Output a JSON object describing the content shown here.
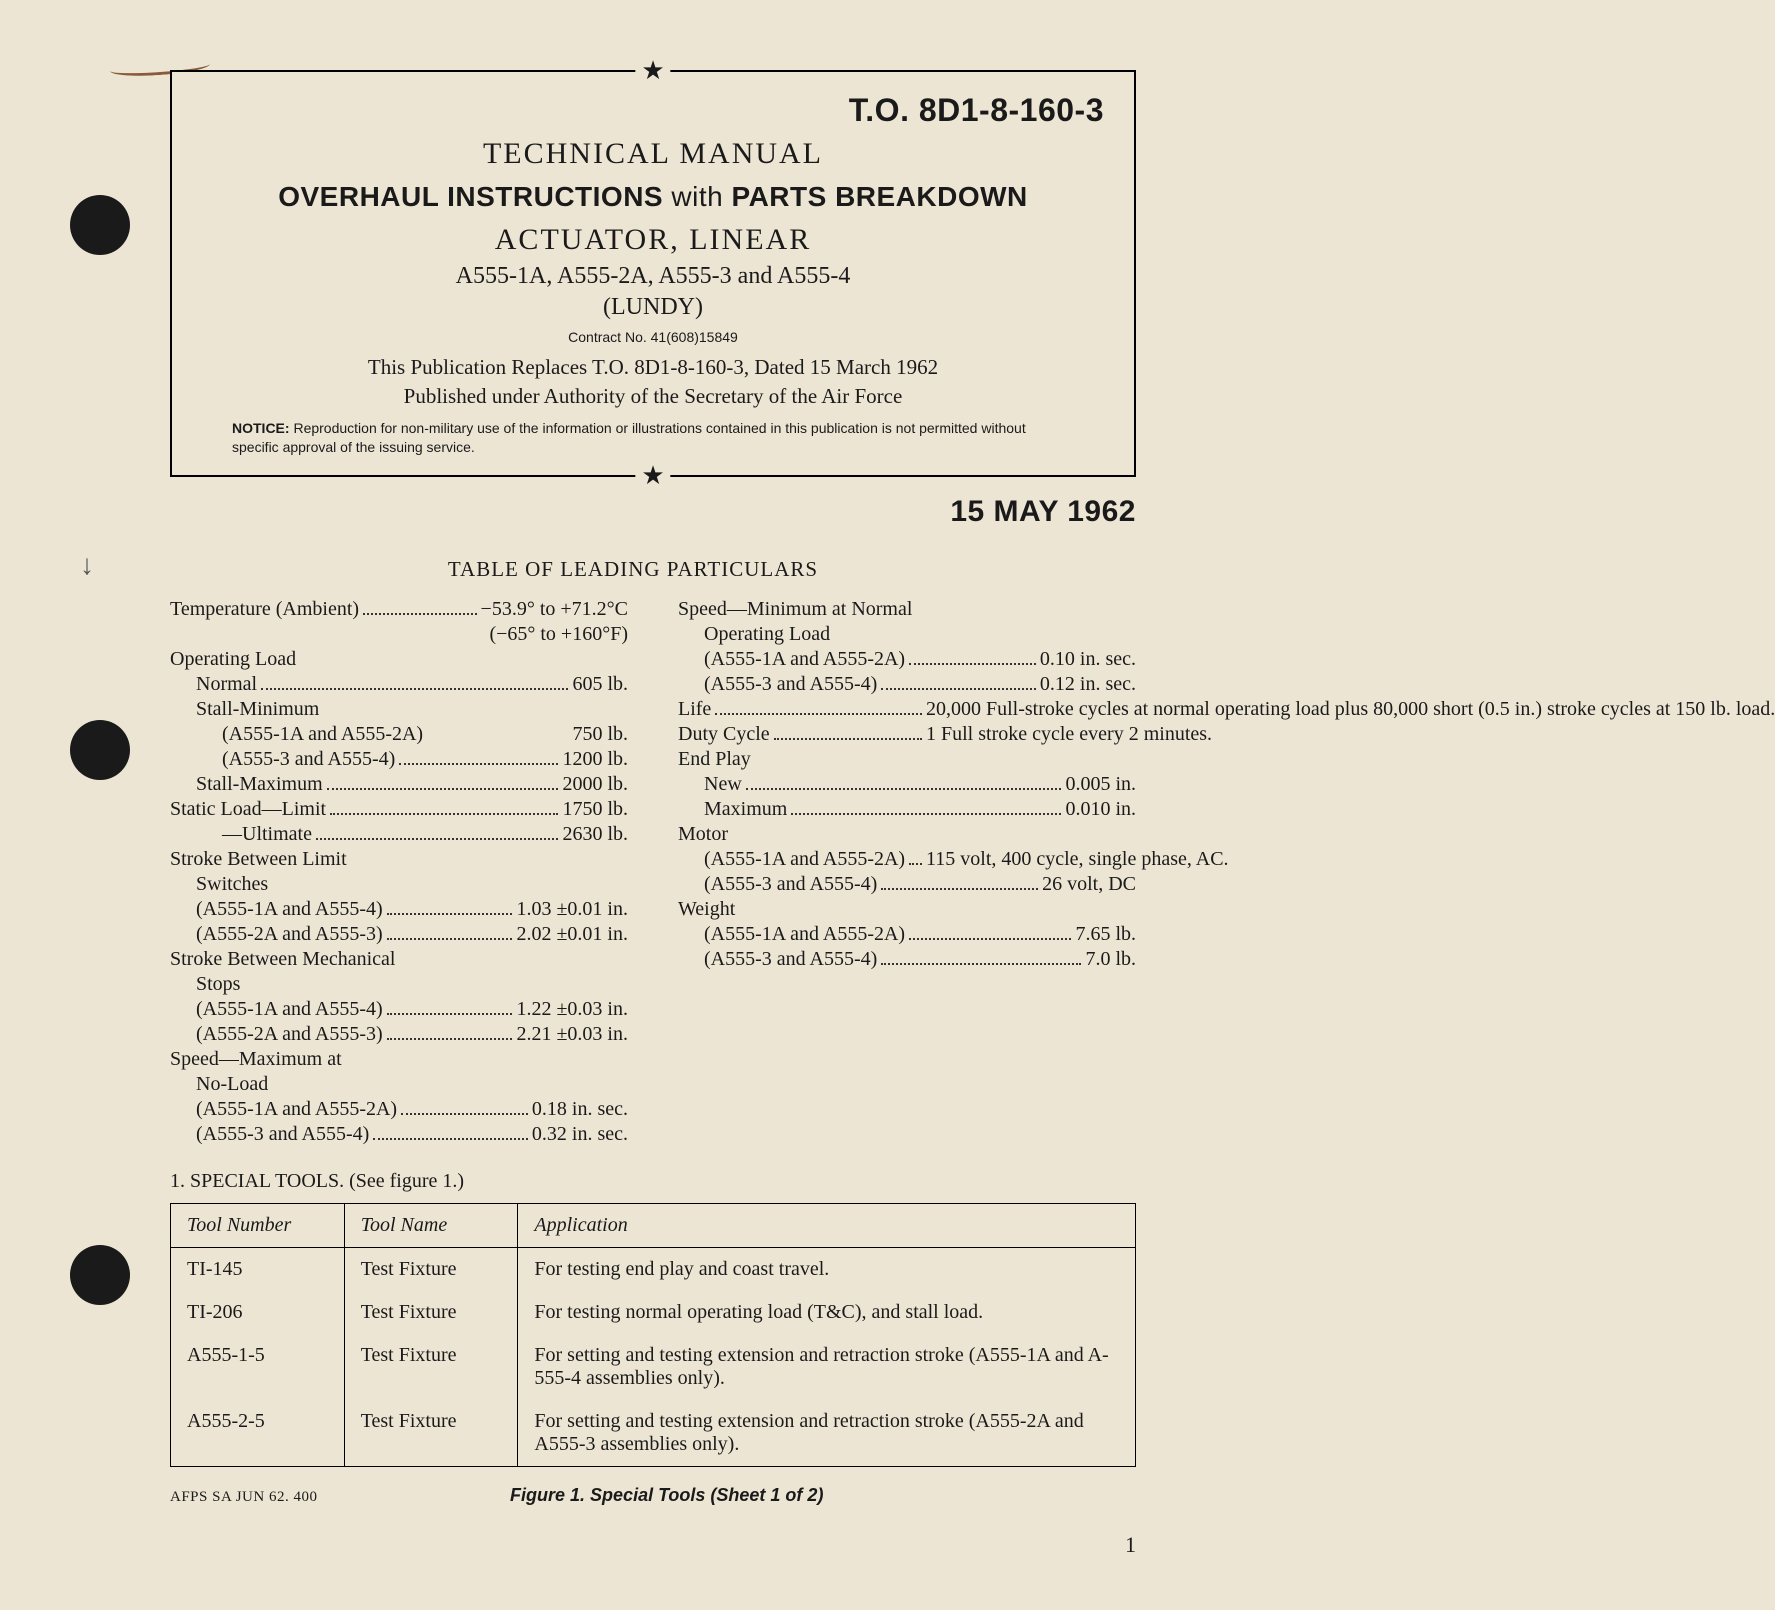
{
  "header": {
    "to_number": "T.O. 8D1-8-160-3",
    "title1": "TECHNICAL MANUAL",
    "title2_a": "OVERHAUL INSTRUCTIONS ",
    "title2_with": "with",
    "title2_b": " PARTS BREAKDOWN",
    "title3": "ACTUATOR, LINEAR",
    "models": "A555-1A, A555-2A, A555-3 and A555-4",
    "lundy": "(LUNDY)",
    "contract": "Contract No. 41(608)15849",
    "replaces": "This Publication Replaces T.O. 8D1-8-160-3, Dated 15 March 1962",
    "authority": "Published under Authority of the Secretary of the Air Force",
    "notice_label": "NOTICE:",
    "notice_text": " Reproduction for non-military use of the information or illustrations contained in this publication is not permitted without specific approval of the issuing service.",
    "date": "15 MAY 1962",
    "star": "★"
  },
  "particulars": {
    "title": "TABLE OF LEADING PARTICULARS",
    "left": [
      {
        "label": "Temperature (Ambient)",
        "val": "−53.9° to +71.2°C",
        "dots": true
      },
      {
        "label": "",
        "val": "(−65° to +160°F)",
        "dots": false
      },
      {
        "label": "Operating Load",
        "val": "",
        "dots": false
      },
      {
        "label": "Normal",
        "val": "605 lb.",
        "dots": true,
        "indent": 1
      },
      {
        "label": "Stall-Minimum",
        "val": "",
        "dots": false,
        "indent": 1
      },
      {
        "label": "(A555-1A and A555-2A)",
        "val": "750 lb.",
        "dots": false,
        "indent": 2
      },
      {
        "label": "(A555-3 and A555-4)",
        "val": "1200 lb.",
        "dots": true,
        "indent": 2
      },
      {
        "label": "Stall-Maximum",
        "val": "2000 lb.",
        "dots": true,
        "indent": 1
      },
      {
        "label": "Static Load—Limit",
        "val": "1750 lb.",
        "dots": true
      },
      {
        "label": "—Ultimate",
        "val": "2630 lb.",
        "dots": true,
        "indent": 2
      },
      {
        "label": "Stroke Between Limit",
        "val": "",
        "dots": false
      },
      {
        "label": "Switches",
        "val": "",
        "dots": false,
        "indent": 1
      },
      {
        "label": "(A555-1A and A555-4)",
        "val": "1.03 ±0.01 in.",
        "dots": true,
        "indent": 1
      },
      {
        "label": "(A555-2A and A555-3)",
        "val": "2.02 ±0.01 in.",
        "dots": true,
        "indent": 1
      },
      {
        "label": "Stroke Between Mechanical",
        "val": "",
        "dots": false
      },
      {
        "label": "Stops",
        "val": "",
        "dots": false,
        "indent": 1
      },
      {
        "label": "(A555-1A and A555-4)",
        "val": "1.22 ±0.03 in.",
        "dots": true,
        "indent": 1
      },
      {
        "label": "(A555-2A and A555-3)",
        "val": "2.21 ±0.03 in.",
        "dots": true,
        "indent": 1
      },
      {
        "label": "Speed—Maximum at",
        "val": "",
        "dots": false
      },
      {
        "label": "No-Load",
        "val": "",
        "dots": false,
        "indent": 1
      },
      {
        "label": "(A555-1A and A555-2A)",
        "val": "0.18 in. sec.",
        "dots": true,
        "indent": 1
      },
      {
        "label": "(A555-3 and A555-4)",
        "val": "0.32 in. sec.",
        "dots": true,
        "indent": 1
      }
    ],
    "right": [
      {
        "label": "Speed—Minimum at Normal",
        "val": "",
        "dots": false
      },
      {
        "label": "Operating Load",
        "val": "",
        "dots": false,
        "indent": 1
      },
      {
        "label": "(A555-1A and A555-2A)",
        "val": "0.10 in. sec.",
        "dots": true,
        "indent": 1
      },
      {
        "label": "(A555-3 and A555-4)",
        "val": "0.12 in. sec.",
        "dots": true,
        "indent": 1
      },
      {
        "label": "Life",
        "val": "20,000 Full-stroke cycles at normal operating load plus 80,000 short (0.5 in.) stroke cycles at 150 lb. load.",
        "dots": true,
        "justify": true
      },
      {
        "label": "Duty Cycle",
        "val": "1 Full stroke cycle every 2 minutes.",
        "dots": true,
        "justify": true
      },
      {
        "label": "End Play",
        "val": "",
        "dots": false
      },
      {
        "label": "New",
        "val": "0.005 in.",
        "dots": true,
        "indent": 1
      },
      {
        "label": "Maximum",
        "val": "0.010 in.",
        "dots": true,
        "indent": 1
      },
      {
        "label": "Motor",
        "val": "",
        "dots": false
      },
      {
        "label": "(A555-1A and A555-2A)",
        "val": "115 volt, 400 cycle, single phase, AC.",
        "dots": true,
        "indent": 1,
        "justify": true
      },
      {
        "label": "(A555-3 and A555-4)",
        "val": "26 volt, DC",
        "dots": true,
        "indent": 1
      },
      {
        "label": "Weight",
        "val": "",
        "dots": false
      },
      {
        "label": "(A555-1A and A555-2A)",
        "val": "7.65 lb.",
        "dots": true,
        "indent": 1
      },
      {
        "label": "(A555-3 and A555-4)",
        "val": "7.0 lb.",
        "dots": true,
        "indent": 1
      }
    ]
  },
  "section1": "1. SPECIAL TOOLS. (See figure 1.)",
  "tools": {
    "headers": [
      "Tool Number",
      "Tool Name",
      "Application"
    ],
    "rows": [
      [
        "TI-145",
        "Test Fixture",
        "For testing end play and coast travel."
      ],
      [
        "TI-206",
        "Test Fixture",
        "For testing normal operating load (T&C), and stall load."
      ],
      [
        "A555-1-5",
        "Test Fixture",
        "For setting and testing extension and retraction stroke (A555-1A and A-555-4 assemblies only)."
      ],
      [
        "A555-2-5",
        "Test Fixture",
        "For setting and testing extension and retraction stroke (A555-2A and A555-3 assemblies only)."
      ]
    ]
  },
  "footer": {
    "afps": "AFPS SA JUN 62. 400",
    "caption": "Figure 1. Special Tools (Sheet 1 of 2)",
    "page": "1"
  }
}
